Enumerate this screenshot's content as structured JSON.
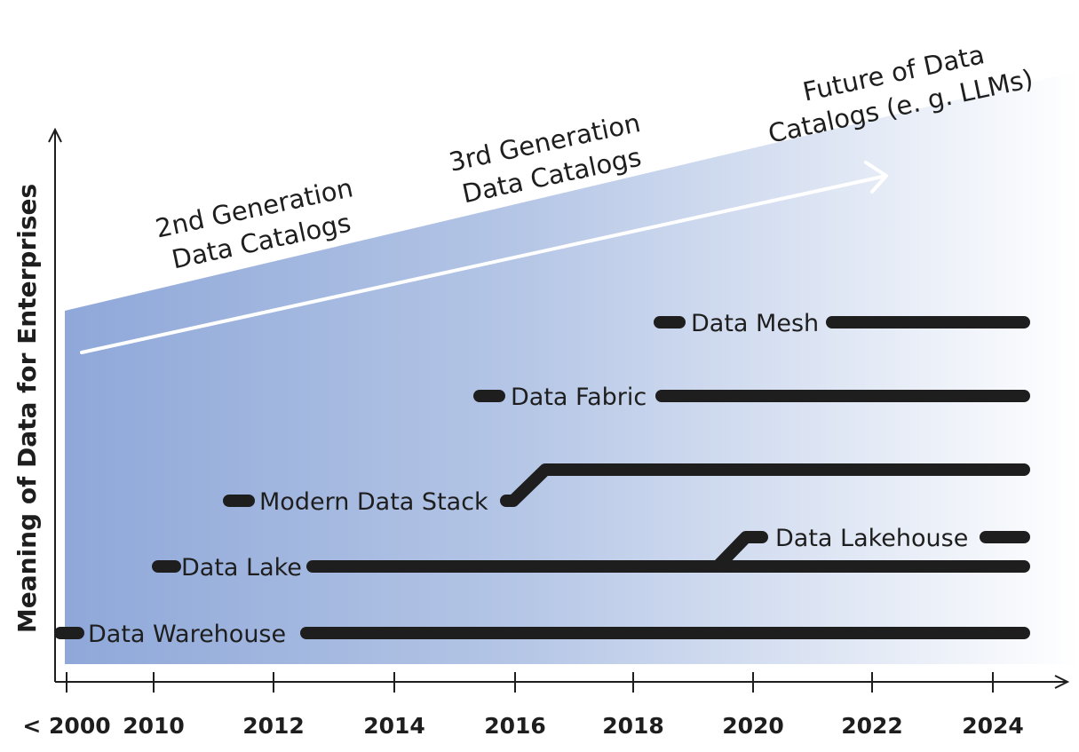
{
  "y_axis_title": "Meaning of Data for Enterprises",
  "x_ticks": [
    "< 2000",
    "2010",
    "2012",
    "2014",
    "2016",
    "2018",
    "2020",
    "2022",
    "2024"
  ],
  "generations": [
    {
      "lines": [
        "2nd Generation",
        "Data Catalogs"
      ]
    },
    {
      "lines": [
        "3rd Generation",
        "Data Catalogs"
      ]
    },
    {
      "lines": [
        "Future of Data",
        "Catalogs (e. g. LLMs)"
      ]
    }
  ],
  "technologies": [
    {
      "key": "mesh",
      "label": "Data Mesh"
    },
    {
      "key": "fabric",
      "label": "Data Fabric"
    },
    {
      "key": "mds",
      "label": "Modern Data Stack"
    },
    {
      "key": "lakehouse",
      "label": "Data Lakehouse"
    },
    {
      "key": "lake",
      "label": "Data Lake"
    },
    {
      "key": "warehouse",
      "label": "Data Warehouse"
    }
  ],
  "colors": {
    "band_start": "#8fa8d9",
    "band_end": "#ffffff",
    "bar": "#1e1e1e"
  }
}
